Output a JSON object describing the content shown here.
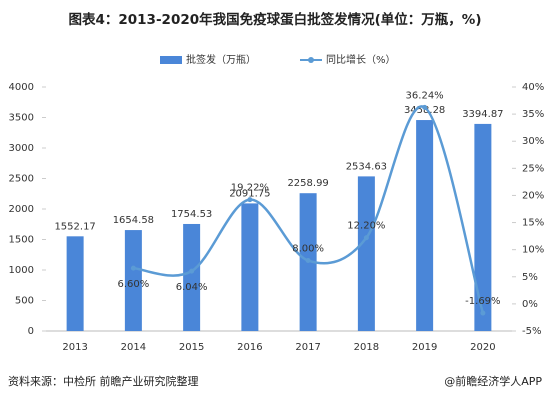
{
  "chart_data": {
    "type": "bar-line",
    "title": "图表4：2013-2020年我国免疫球蛋白批签发情况(单位：万瓶，%)",
    "categories": [
      "2013",
      "2014",
      "2015",
      "2016",
      "2017",
      "2018",
      "2019",
      "2020"
    ],
    "series": [
      {
        "name": "批签发（万瓶）",
        "type": "bar",
        "color": "#4a86d8",
        "values": [
          1552.17,
          1654.58,
          1754.53,
          2091.75,
          2258.99,
          2534.63,
          3458.28,
          3394.87
        ]
      },
      {
        "name": "同比增长（%）",
        "type": "line",
        "axis": "y2",
        "color": "#5b9bd5",
        "values": [
          null,
          6.6,
          6.04,
          19.22,
          8,
          12.2,
          36.24,
          -1.69
        ],
        "value_labels": [
          null,
          "6.60%",
          "6.04%",
          "19.22%",
          "8.00%",
          "12.20%",
          "36.24%",
          "-1.69%"
        ]
      }
    ],
    "ylim": [
      0,
      4000
    ],
    "yticks": [
      0,
      500,
      1000,
      1500,
      2000,
      2500,
      3000,
      3500,
      4000
    ],
    "y2lim": [
      -5,
      40
    ],
    "y2ticks": [
      {
        "value": -5,
        "label": "-5%"
      },
      {
        "value": 0,
        "label": "0%"
      },
      {
        "value": 5,
        "label": "5%"
      },
      {
        "value": 10,
        "label": "10%"
      },
      {
        "value": 15,
        "label": "15%"
      },
      {
        "value": 20,
        "label": "20%"
      },
      {
        "value": 25,
        "label": "25%"
      },
      {
        "value": 30,
        "label": "30%"
      },
      {
        "value": 35,
        "label": "35%"
      },
      {
        "value": 40,
        "label": "40%"
      }
    ],
    "legend": "top",
    "source": "资料来源：中检所 前瞻产业研究院整理",
    "credit": "@前瞻经济学人APP"
  }
}
